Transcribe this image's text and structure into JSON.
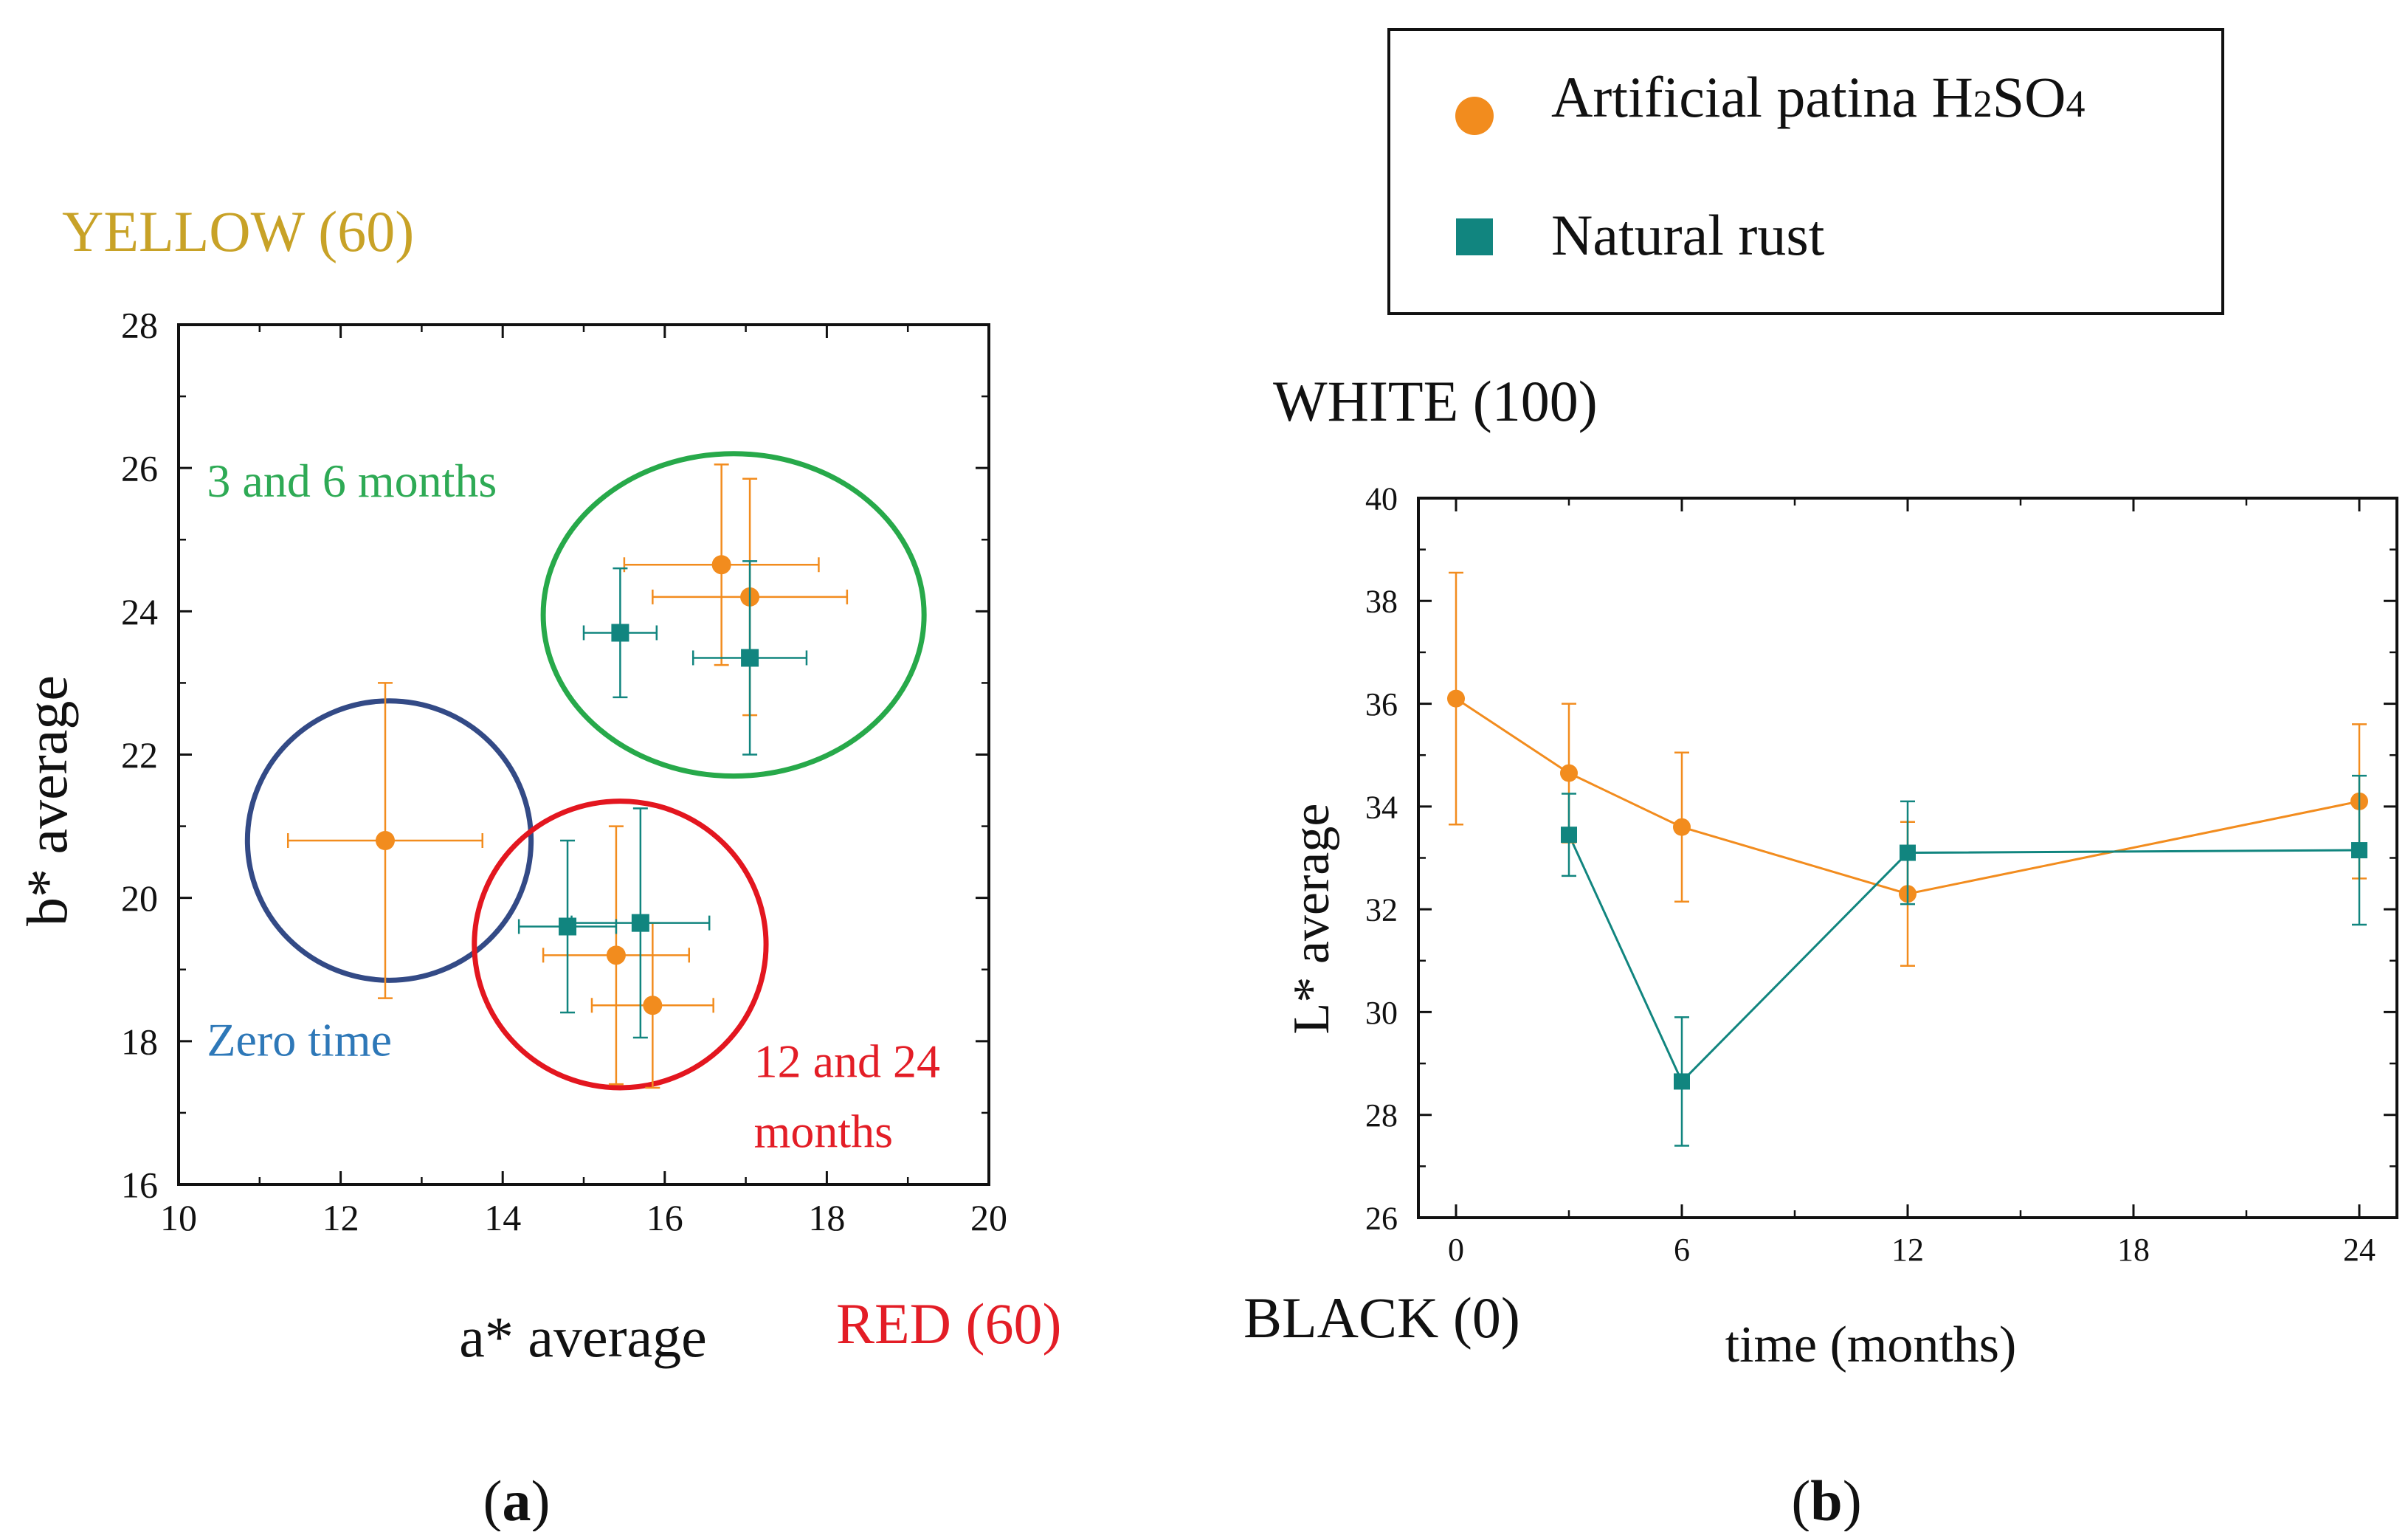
{
  "colors": {
    "orange": "#f28c1e",
    "teal": "#11857f",
    "yellow_label": "#c8a227",
    "green_label": "#2eaa55",
    "blue_label": "#2e78b8",
    "red_label": "#e31d26",
    "green_circle": "#27a94a",
    "blue_circle": "#334a86",
    "red_circle": "#e3161f",
    "black": "#111111"
  },
  "legend": {
    "items": [
      {
        "label_main": "Artificial patina H",
        "sub1": "2",
        "mid": "SO",
        "sub2": "4",
        "marker": "circle",
        "color_key": "orange"
      },
      {
        "label_main": "Natural rust",
        "marker": "square",
        "color_key": "teal"
      }
    ]
  },
  "panel_labels": {
    "a": "a",
    "b": "b"
  },
  "chart_data": [
    {
      "id": "a",
      "type": "scatter",
      "title": "",
      "xlabel": "a* average",
      "ylabel": "b* average",
      "xlim": [
        10,
        20
      ],
      "ylim": [
        16,
        28
      ],
      "xticks": [
        10,
        12,
        14,
        16,
        18,
        20
      ],
      "yticks": [
        16,
        18,
        20,
        22,
        24,
        26,
        28
      ],
      "axis_annotations": {
        "top": "YELLOW (60)",
        "right": "RED (60)"
      },
      "series": [
        {
          "name": "Artificial patina H2SO4",
          "marker": "circle",
          "points": [
            {
              "x": 12.55,
              "y": 20.8,
              "xerr": 1.2,
              "yerr": 2.2
            },
            {
              "x": 16.7,
              "y": 24.65,
              "xerr": 1.2,
              "yerr": 1.4
            },
            {
              "x": 17.05,
              "y": 24.2,
              "xerr": 1.2,
              "yerr": 1.65
            },
            {
              "x": 15.4,
              "y": 19.2,
              "xerr": 0.9,
              "yerr": 1.8
            },
            {
              "x": 15.85,
              "y": 18.5,
              "xerr": 0.75,
              "yerr": 1.15
            }
          ]
        },
        {
          "name": "Natural rust",
          "marker": "square",
          "points": [
            {
              "x": 15.45,
              "y": 23.7,
              "xerr": 0.45,
              "yerr": 0.9
            },
            {
              "x": 17.05,
              "y": 23.35,
              "xerr": 0.7,
              "yerr": 1.35
            },
            {
              "x": 14.8,
              "y": 19.6,
              "xerr": 0.6,
              "yerr": 1.2
            },
            {
              "x": 15.7,
              "y": 19.65,
              "xerr": 0.85,
              "yerr": 1.6
            }
          ]
        }
      ],
      "groups": [
        {
          "label": "Zero time",
          "cx": 12.6,
          "cy": 20.8,
          "rx": 1.75,
          "ry": 1.95,
          "color_key": "blue_circle",
          "label_color_key": "blue_label",
          "label_x": 10.35,
          "label_y": 17.8,
          "lines": [
            "Zero time"
          ]
        },
        {
          "label": "3 and 6 months",
          "cx": 16.85,
          "cy": 23.95,
          "rx": 2.35,
          "ry": 2.25,
          "color_key": "green_circle",
          "label_color_key": "green_label",
          "label_x": 10.35,
          "label_y": 25.6,
          "lines": [
            "3 and 6 months"
          ]
        },
        {
          "label": "12 and 24 months",
          "cx": 15.45,
          "cy": 19.35,
          "rx": 1.8,
          "ry": 2.0,
          "color_key": "red_circle",
          "label_color_key": "red_label",
          "label_x": 17.1,
          "label_y": 17.5,
          "lines": [
            "12 and 24",
            "months"
          ]
        }
      ]
    },
    {
      "id": "b",
      "type": "line",
      "title": "",
      "xlabel": "time (months)",
      "ylabel": "L* average",
      "xlim": [
        -1,
        25
      ],
      "ylim": [
        26,
        40
      ],
      "xticks": [
        0,
        6,
        12,
        18,
        24
      ],
      "yticks": [
        26,
        28,
        30,
        32,
        34,
        36,
        38,
        40
      ],
      "axis_annotations": {
        "top": "WHITE (100)",
        "bottom": "BLACK (0)"
      },
      "series": [
        {
          "name": "Artificial patina H2SO4",
          "marker": "circle",
          "points": [
            {
              "x": 0,
              "y": 36.1,
              "yerr": 2.45
            },
            {
              "x": 3,
              "y": 34.65,
              "yerr": 1.35
            },
            {
              "x": 6,
              "y": 33.6,
              "yerr": 1.45
            },
            {
              "x": 12,
              "y": 32.3,
              "yerr": 1.4
            },
            {
              "x": 24,
              "y": 34.1,
              "yerr": 1.5
            }
          ]
        },
        {
          "name": "Natural rust",
          "marker": "square",
          "points": [
            {
              "x": 3,
              "y": 33.45,
              "yerr": 0.8
            },
            {
              "x": 6,
              "y": 28.65,
              "yerr": 1.25
            },
            {
              "x": 12,
              "y": 33.1,
              "yerr": 1.0
            },
            {
              "x": 24,
              "y": 33.15,
              "yerr": 1.45
            }
          ]
        }
      ]
    }
  ]
}
